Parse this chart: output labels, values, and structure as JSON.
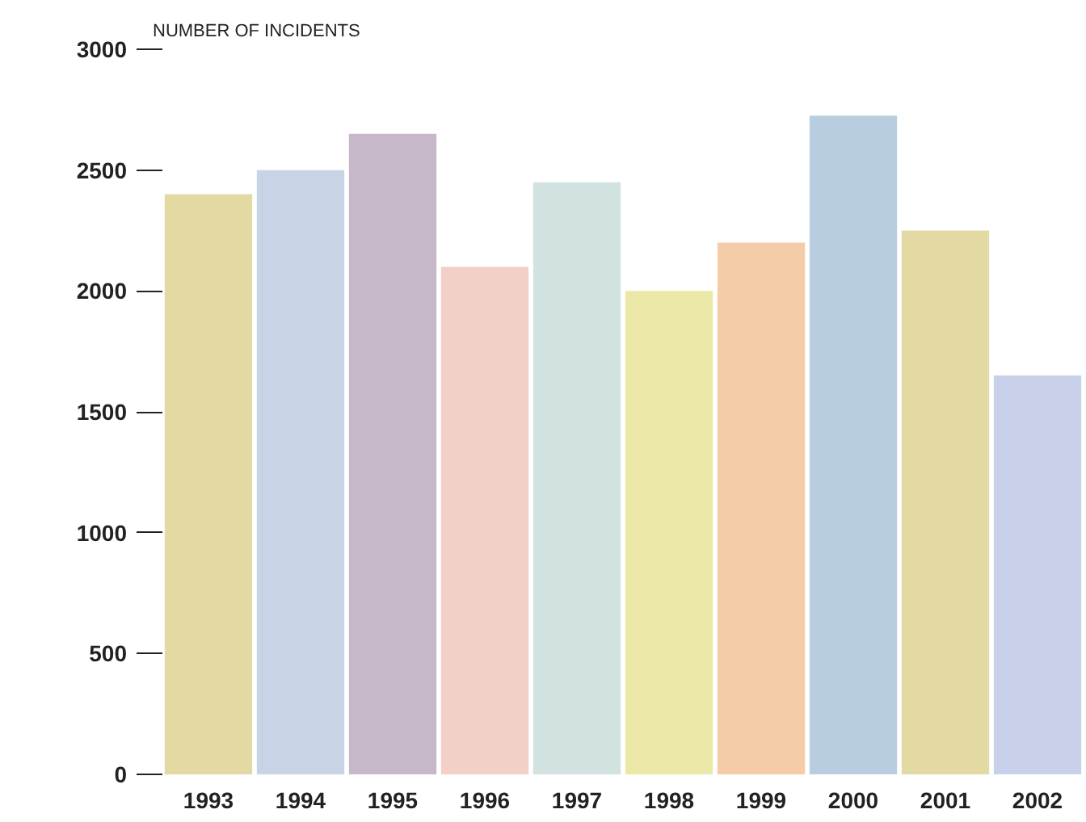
{
  "chart_data": {
    "type": "bar",
    "ylabel": "NUMBER OF INCIDENTS",
    "categories": [
      "1993",
      "1994",
      "1995",
      "1996",
      "1997",
      "1998",
      "1999",
      "2000",
      "2001",
      "2002"
    ],
    "values": [
      2400,
      2500,
      2650,
      2100,
      2450,
      2000,
      2200,
      2725,
      2250,
      1650
    ],
    "colors": [
      "#e2d9a3",
      "#c8d3e6",
      "#c6b8c9",
      "#f2d0c8",
      "#d2e2e0",
      "#ece9a8",
      "#f5cca8",
      "#b8cde0",
      "#e2d9a3",
      "#c8d0ea"
    ],
    "ylim": [
      0,
      3000
    ],
    "yticks": [
      0,
      500,
      1000,
      1500,
      2000,
      2500,
      3000
    ],
    "grid": false
  }
}
